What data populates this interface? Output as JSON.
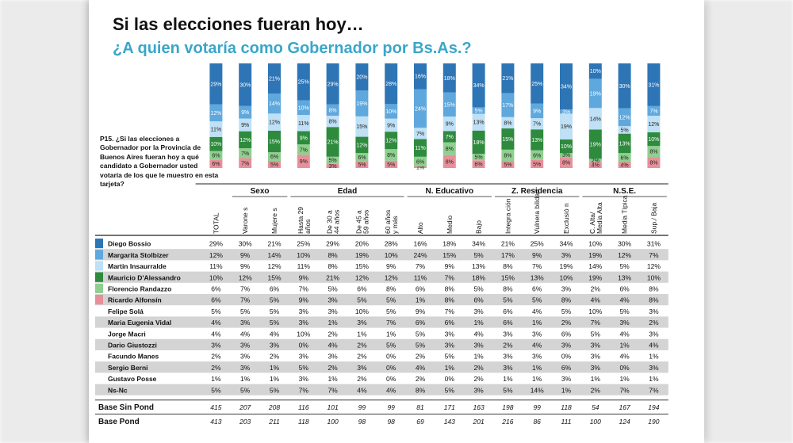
{
  "title": "Si las elecciones fueran hoy…",
  "subtitle": "¿A quien votaría como Gobernador por Bs.As.?",
  "question": "P15. ¿Si las elecciones a Gobernador por la Provincia de Buenos Aires fueran hoy a qué candidato a Gobernador usted votaría de los que le muestro en esta tarjeta?",
  "groups": [
    {
      "label": "Sexo",
      "start": 1,
      "end": 2
    },
    {
      "label": "Edad",
      "start": 3,
      "end": 6
    },
    {
      "label": "N. Educativo",
      "start": 7,
      "end": 9
    },
    {
      "label": "Z. Residencia",
      "start": 10,
      "end": 12
    },
    {
      "label": "N.S.E.",
      "start": 13,
      "end": 15
    }
  ],
  "chart_data": {
    "type": "table",
    "columns": [
      "TOTAL",
      "Varone s",
      "Mujere s",
      "Hasta 29 años",
      "De 30 a 44 años",
      "De 45 a 59 años",
      "60 años y más",
      "Alto",
      "Medio",
      "Bajo",
      "Integra ción",
      "Vulnera bilidad",
      "Exclusió n",
      "C. Alta/ Media Alta",
      "Media Típica",
      "Sup./ Baja"
    ],
    "rows": [
      {
        "name": "Diego Bossio",
        "color": "#2e75b6",
        "values": [
          "29%",
          "30%",
          "21%",
          "25%",
          "29%",
          "20%",
          "28%",
          "16%",
          "18%",
          "34%",
          "21%",
          "25%",
          "34%",
          "10%",
          "30%",
          "31%"
        ]
      },
      {
        "name": "Margarita Stolbizer",
        "color": "#5fa8dd",
        "values": [
          "12%",
          "9%",
          "14%",
          "10%",
          "8%",
          "19%",
          "10%",
          "24%",
          "15%",
          "5%",
          "17%",
          "9%",
          "3%",
          "19%",
          "12%",
          "7%"
        ]
      },
      {
        "name": "Martin Insaurralde",
        "color": "#bfe0f5",
        "values": [
          "11%",
          "9%",
          "12%",
          "11%",
          "8%",
          "15%",
          "9%",
          "7%",
          "9%",
          "13%",
          "8%",
          "7%",
          "19%",
          "14%",
          "5%",
          "12%"
        ]
      },
      {
        "name": "Mauricio D'Alessandro",
        "color": "#2e8b3e",
        "values": [
          "10%",
          "12%",
          "15%",
          "9%",
          "21%",
          "12%",
          "12%",
          "11%",
          "7%",
          "18%",
          "15%",
          "13%",
          "10%",
          "19%",
          "13%",
          "10%"
        ]
      },
      {
        "name": "Florencio Randazzo",
        "color": "#8fcf8f",
        "values": [
          "6%",
          "7%",
          "6%",
          "7%",
          "5%",
          "6%",
          "8%",
          "6%",
          "8%",
          "5%",
          "8%",
          "6%",
          "3%",
          "2%",
          "6%",
          "8%"
        ]
      },
      {
        "name": "Ricardo Alfonsín",
        "color": "#e8909a",
        "values": [
          "6%",
          "7%",
          "5%",
          "9%",
          "3%",
          "5%",
          "5%",
          "1%",
          "8%",
          "6%",
          "5%",
          "5%",
          "8%",
          "4%",
          "4%",
          "8%"
        ]
      },
      {
        "name": "Felipe Solá",
        "color": "",
        "values": [
          "5%",
          "5%",
          "5%",
          "3%",
          "3%",
          "10%",
          "5%",
          "9%",
          "7%",
          "3%",
          "6%",
          "4%",
          "5%",
          "10%",
          "5%",
          "3%"
        ]
      },
      {
        "name": "Maria Eugenia Vidal",
        "color": "",
        "values": [
          "4%",
          "3%",
          "5%",
          "3%",
          "1%",
          "3%",
          "7%",
          "6%",
          "6%",
          "1%",
          "6%",
          "1%",
          "2%",
          "7%",
          "3%",
          "2%"
        ]
      },
      {
        "name": "Jorge Macri",
        "color": "",
        "values": [
          "4%",
          "4%",
          "4%",
          "10%",
          "2%",
          "1%",
          "1%",
          "5%",
          "3%",
          "4%",
          "3%",
          "3%",
          "6%",
          "5%",
          "4%",
          "3%"
        ]
      },
      {
        "name": "Dario Giustozzi",
        "color": "",
        "values": [
          "3%",
          "3%",
          "3%",
          "0%",
          "4%",
          "2%",
          "5%",
          "5%",
          "3%",
          "3%",
          "2%",
          "4%",
          "3%",
          "3%",
          "1%",
          "4%"
        ]
      },
      {
        "name": "Facundo Manes",
        "color": "",
        "values": [
          "2%",
          "3%",
          "2%",
          "3%",
          "3%",
          "2%",
          "0%",
          "2%",
          "5%",
          "1%",
          "3%",
          "3%",
          "0%",
          "3%",
          "4%",
          "1%"
        ]
      },
      {
        "name": "Sergio Berni",
        "color": "",
        "values": [
          "2%",
          "3%",
          "1%",
          "5%",
          "2%",
          "3%",
          "0%",
          "4%",
          "1%",
          "2%",
          "3%",
          "1%",
          "6%",
          "3%",
          "0%",
          "3%"
        ]
      },
      {
        "name": "Gustavo Posse",
        "color": "",
        "values": [
          "1%",
          "1%",
          "1%",
          "3%",
          "1%",
          "2%",
          "0%",
          "2%",
          "0%",
          "2%",
          "1%",
          "1%",
          "3%",
          "1%",
          "1%",
          "1%"
        ]
      },
      {
        "name": "Ns-Nc",
        "color": "",
        "values": [
          "5%",
          "5%",
          "5%",
          "7%",
          "7%",
          "4%",
          "4%",
          "8%",
          "5%",
          "3%",
          "5%",
          "14%",
          "1%",
          "2%",
          "7%",
          "7%"
        ]
      }
    ],
    "base_rows": [
      {
        "name": "Base Sin Pond",
        "values": [
          "415",
          "207",
          "208",
          "116",
          "101",
          "99",
          "99",
          "81",
          "171",
          "163",
          "198",
          "99",
          "118",
          "54",
          "167",
          "194"
        ]
      },
      {
        "name": "Base Pond",
        "values": [
          "413",
          "203",
          "211",
          "118",
          "100",
          "98",
          "98",
          "69",
          "143",
          "201",
          "216",
          "86",
          "111",
          "100",
          "124",
          "190"
        ]
      }
    ],
    "stacked_bars": {
      "series": [
        {
          "name": "Diego Bossio",
          "color": "#2e75b6",
          "values": [
            29,
            30,
            21,
            25,
            29,
            20,
            28,
            16,
            18,
            34,
            21,
            25,
            34,
            10,
            30,
            31
          ]
        },
        {
          "name": "Margarita Stolbizer",
          "color": "#5fa8dd",
          "values": [
            12,
            9,
            14,
            10,
            8,
            19,
            10,
            24,
            15,
            5,
            17,
            9,
            3,
            19,
            12,
            7
          ]
        },
        {
          "name": "Martin Insaurralde",
          "color": "#bfe0f5",
          "values": [
            11,
            9,
            12,
            11,
            8,
            15,
            9,
            7,
            9,
            13,
            8,
            7,
            19,
            14,
            5,
            12
          ]
        },
        {
          "name": "Mauricio D'Alessandro",
          "color": "#2e8b3e",
          "values": [
            10,
            12,
            15,
            9,
            21,
            12,
            12,
            11,
            7,
            18,
            15,
            13,
            10,
            19,
            13,
            10
          ]
        },
        {
          "name": "Florencio Randazzo",
          "color": "#8fcf8f",
          "values": [
            6,
            7,
            6,
            7,
            5,
            6,
            8,
            6,
            8,
            5,
            8,
            6,
            3,
            2,
            6,
            8
          ]
        },
        {
          "name": "Ricardo Alfonsín",
          "color": "#e8909a",
          "values": [
            6,
            7,
            5,
            9,
            3,
            5,
            5,
            1,
            8,
            6,
            5,
            5,
            8,
            4,
            4,
            8
          ]
        }
      ]
    }
  }
}
